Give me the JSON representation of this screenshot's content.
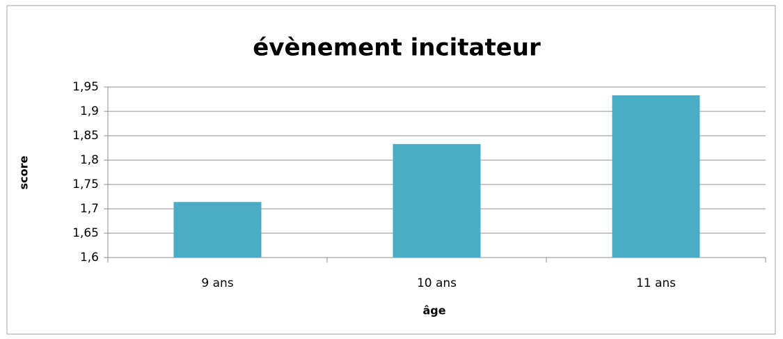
{
  "chart_data": {
    "type": "bar",
    "title": "évènement incitateur",
    "x_label": "âge",
    "y_label": "score",
    "categories": [
      "9 ans",
      "10 ans",
      "11 ans"
    ],
    "values": [
      1.714,
      1.833,
      1.933
    ],
    "color": "#4bacc6",
    "ylim": [
      1.6,
      1.95
    ],
    "yticks": [
      {
        "value": 1.6,
        "label": "1,6"
      },
      {
        "value": 1.65,
        "label": "1,65"
      },
      {
        "value": 1.7,
        "label": "1,7"
      },
      {
        "value": 1.75,
        "label": "1,75"
      },
      {
        "value": 1.8,
        "label": "1,8"
      },
      {
        "value": 1.85,
        "label": "1,85"
      },
      {
        "value": 1.9,
        "label": "1,9"
      },
      {
        "value": 1.95,
        "label": "1,95"
      }
    ],
    "grid": true
  }
}
